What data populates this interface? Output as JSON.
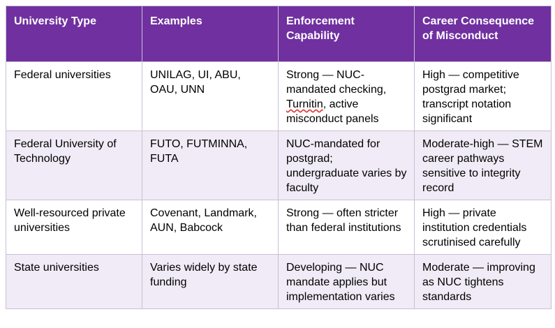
{
  "table": {
    "headers": [
      "University Type",
      "Examples",
      "Enforcement Capability",
      "Career Consequence of Misconduct"
    ],
    "rows": [
      {
        "type": "Federal universities",
        "examples": "UNILAG, UI, ABU, OAU, UNN",
        "enforcement_before": "Strong — NUC-mandated checking, ",
        "enforcement_marked": "Turnitin",
        "enforcement_after": ", active misconduct panels",
        "consequence": "High — competitive postgrad market; transcript notation significant"
      },
      {
        "type": "Federal University of Technology",
        "examples": "FUTO, FUTMINNA, FUTA",
        "enforcement": "NUC-mandated for postgrad; undergraduate varies by faculty",
        "consequence": "Moderate-high — STEM career pathways sensitive to integrity record"
      },
      {
        "type": "Well-resourced private universities",
        "examples": "Covenant, Landmark, AUN, Babcock",
        "enforcement": "Strong — often stricter than federal institutions",
        "consequence": "High — private institution credentials scrutinised carefully"
      },
      {
        "type": "State universities",
        "examples": "Varies widely by state funding",
        "enforcement": "Developing — NUC mandate applies but implementation varies",
        "consequence": "Moderate — improving as NUC tightens standards"
      }
    ]
  },
  "colors": {
    "header_bg": "#7030a0",
    "header_text": "#ffffff",
    "row_alt_bg": "#f0ebf6",
    "border": "#c9c0d6"
  }
}
